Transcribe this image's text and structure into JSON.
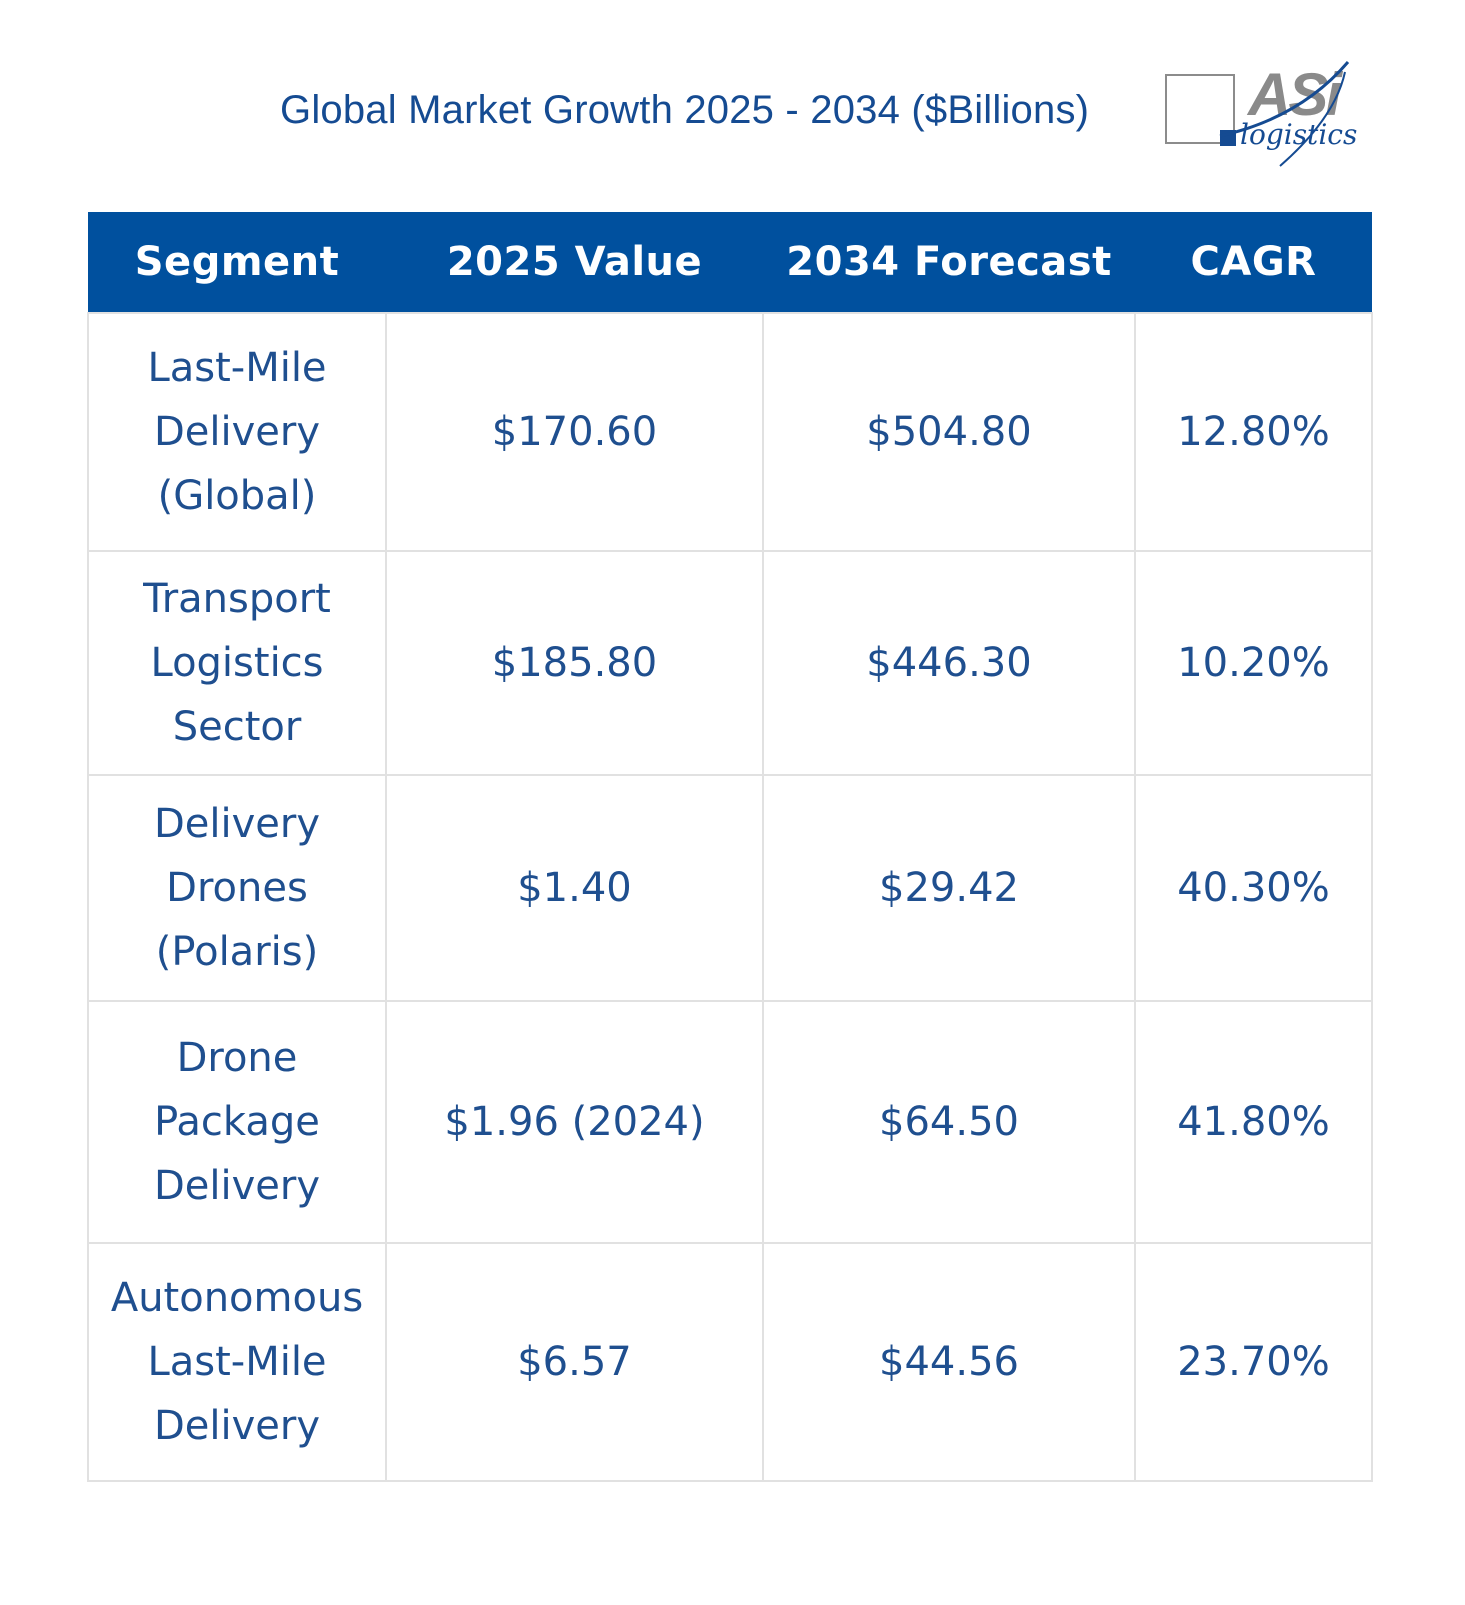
{
  "title": "Global Market Growth 2025 - 2034 ($Billions)",
  "logo": {
    "brand": "ASi",
    "subtitle": "logistics"
  },
  "colors": {
    "header_bg": "#00509e",
    "title_text": "#154b92",
    "cell_text": "#1f4f8f",
    "grid": "#e1e1e1"
  },
  "chart_data": {
    "type": "table",
    "title": "Global Market Growth 2025 - 2034 ($Billions)",
    "columns": [
      "Segment",
      "2025 Value",
      "2034 Forecast",
      "CAGR"
    ],
    "rows": [
      {
        "segment": "Last-Mile Delivery (Global)",
        "value_2025": "$170.60",
        "forecast_2034": "$504.80",
        "cagr": "12.80%"
      },
      {
        "segment": "Transport Logistics Sector",
        "value_2025": "$185.80",
        "forecast_2034": "$446.30",
        "cagr": "10.20%"
      },
      {
        "segment": "Delivery Drones (Polaris)",
        "value_2025": "$1.40",
        "forecast_2034": "$29.42",
        "cagr": "40.30%"
      },
      {
        "segment": "Drone Package Delivery",
        "value_2025": "$1.96 (2024)",
        "forecast_2034": "$64.50",
        "cagr": "41.80%"
      },
      {
        "segment": "Autonomous Last-Mile Delivery",
        "value_2025": "$6.57",
        "forecast_2034": "$44.56",
        "cagr": "23.70%"
      }
    ]
  }
}
